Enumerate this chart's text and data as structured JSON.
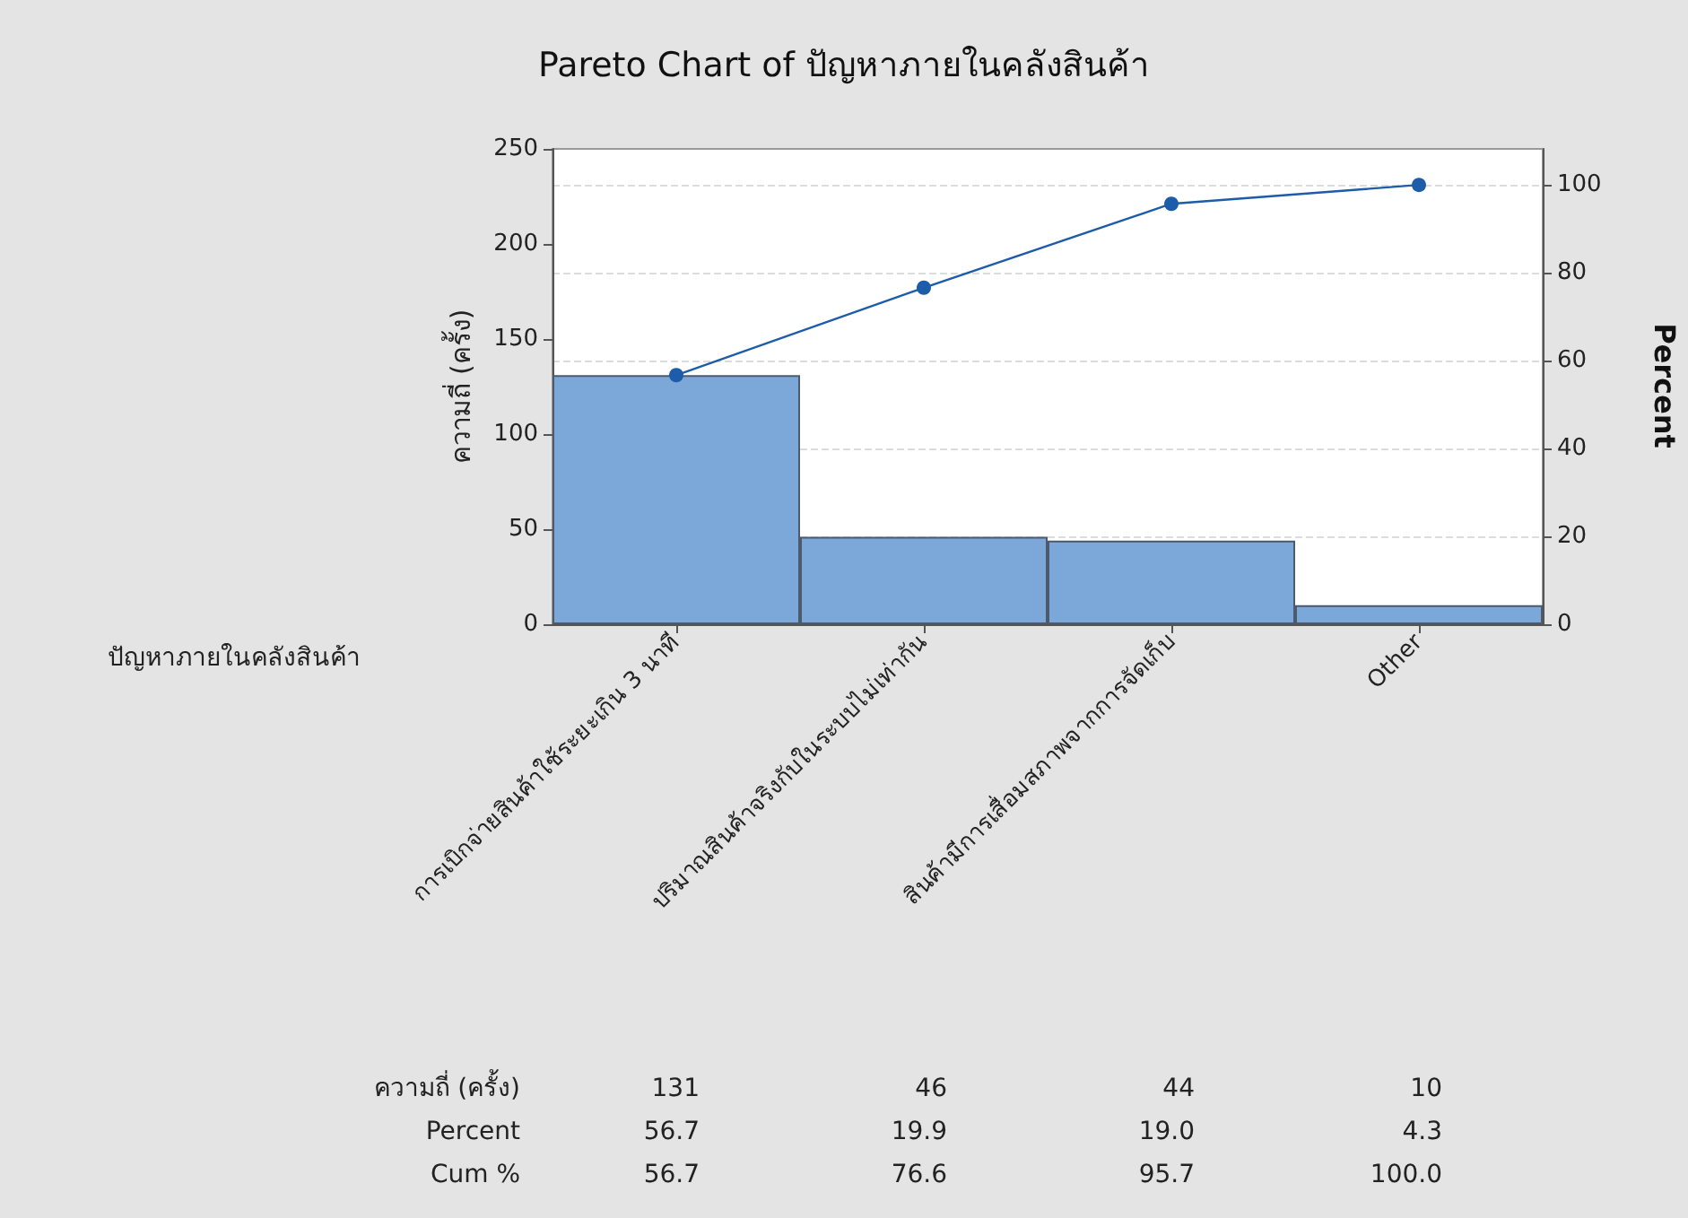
{
  "chart_data": {
    "type": "bar",
    "title": "Pareto Chart of ปัญหาภายในคลังสินค้า",
    "xlabel": "ปัญหาภายในคลังสินค้า",
    "ylabel": "ความถี่ (ครั้ง)",
    "y2label": "Percent",
    "categories": [
      "การเบิกจ่ายสินค้าใช้ระยะเกิน 3 นาที",
      "ปริมาณสินค้าจริงกับในระบบไม่เท่ากัน",
      "สินค้ามีการเสื่อมสภาพจากการจัดเก็บ",
      "Other"
    ],
    "series": [
      {
        "color": "#7ba7d9",
        "values": [
          131,
          46,
          44,
          10
        ]
      },
      {
        "type": "line",
        "axis": "y2",
        "color": "#1c5ca8",
        "values": [
          56.7,
          76.6,
          95.7,
          100
        ],
        "value_labels": [
          "56.7",
          "76.6",
          "95.7",
          "100.0"
        ]
      }
    ],
    "annotations": [
      "ความถี่ (ครั้ง)",
      "Percent",
      "Cum %",
      "56.7",
      "19.9",
      "19.0",
      "4.3"
    ],
    "data_labels": true,
    "ylim": [
      0,
      250
    ],
    "yticks": [
      0,
      50,
      100,
      150,
      200,
      250
    ],
    "y2lim": [
      0,
      108.2
    ],
    "y2ticks": [
      0,
      20,
      40,
      60,
      80,
      100
    ],
    "grid": true,
    "marker": "circle"
  }
}
